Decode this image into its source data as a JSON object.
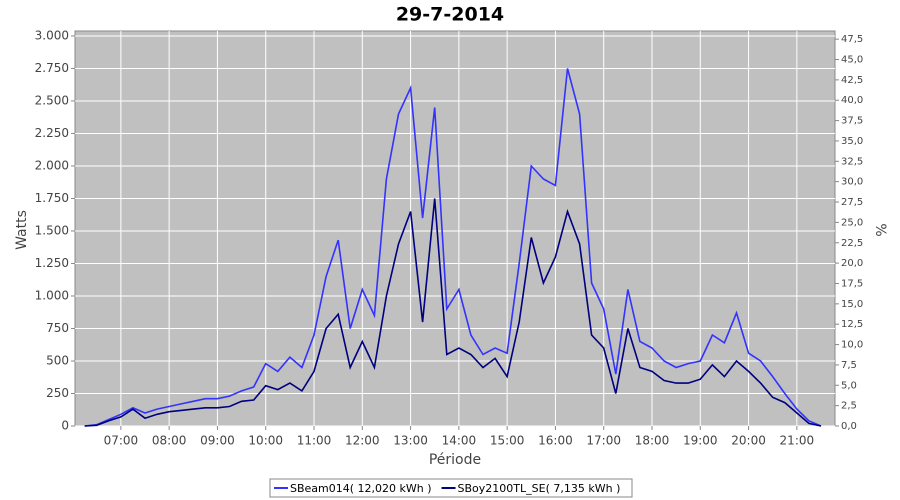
{
  "chart_data": {
    "type": "line",
    "title": "29-7-2014",
    "x_label": "Période",
    "y_label": "Watts",
    "y2_label": "%",
    "x": [
      6.25,
      6.5,
      6.75,
      7.0,
      7.25,
      7.5,
      7.75,
      8.0,
      8.25,
      8.5,
      8.75,
      9.0,
      9.25,
      9.5,
      9.75,
      10.0,
      10.25,
      10.5,
      10.75,
      11.0,
      11.25,
      11.5,
      11.75,
      12.0,
      12.25,
      12.5,
      12.75,
      13.0,
      13.25,
      13.5,
      13.75,
      14.0,
      14.25,
      14.5,
      14.75,
      15.0,
      15.25,
      15.5,
      15.75,
      16.0,
      16.25,
      16.5,
      16.75,
      17.0,
      17.25,
      17.5,
      17.75,
      18.0,
      18.25,
      18.5,
      18.75,
      19.0,
      19.25,
      19.5,
      19.75,
      20.0,
      20.25,
      20.5,
      20.75,
      21.0,
      21.25,
      21.5
    ],
    "series": [
      {
        "name": "SBeam014( 12,020 kWh )",
        "color": "#3333ff",
        "values": [
          0,
          10,
          50,
          90,
          140,
          100,
          130,
          150,
          170,
          190,
          210,
          210,
          230,
          270,
          300,
          480,
          420,
          530,
          450,
          700,
          1150,
          1430,
          750,
          1050,
          850,
          1900,
          2400,
          2600,
          1600,
          2450,
          900,
          1050,
          700,
          550,
          600,
          560,
          1250,
          2000,
          1900,
          1850,
          2750,
          2400,
          1100,
          900,
          400,
          1050,
          650,
          600,
          500,
          450,
          480,
          500,
          700,
          640,
          870,
          560,
          500,
          380,
          250,
          130,
          40,
          0
        ]
      },
      {
        "name": "SBoy2100TL_SE( 7,135 kWh )",
        "color": "#000080",
        "values": [
          0,
          5,
          40,
          70,
          130,
          60,
          90,
          110,
          120,
          130,
          140,
          140,
          150,
          190,
          200,
          310,
          280,
          330,
          270,
          420,
          750,
          860,
          450,
          650,
          450,
          1000,
          1400,
          1650,
          800,
          1750,
          550,
          600,
          550,
          450,
          520,
          380,
          800,
          1450,
          1100,
          1300,
          1650,
          1400,
          700,
          600,
          250,
          750,
          450,
          420,
          350,
          330,
          330,
          360,
          470,
          380,
          500,
          420,
          330,
          220,
          180,
          100,
          20,
          0
        ]
      }
    ],
    "xlim": [
      6.05,
      21.79
    ],
    "xticks": [
      {
        "value": 7,
        "label": "07:00"
      },
      {
        "value": 8,
        "label": "08:00"
      },
      {
        "value": 9,
        "label": "09:00"
      },
      {
        "value": 10,
        "label": "10:00"
      },
      {
        "value": 11,
        "label": "11:00"
      },
      {
        "value": 12,
        "label": "12:00"
      },
      {
        "value": 13,
        "label": "13:00"
      },
      {
        "value": 14,
        "label": "14:00"
      },
      {
        "value": 15,
        "label": "15:00"
      },
      {
        "value": 16,
        "label": "16:00"
      },
      {
        "value": 17,
        "label": "17:00"
      },
      {
        "value": 18,
        "label": "18:00"
      },
      {
        "value": 19,
        "label": "19:00"
      },
      {
        "value": 20,
        "label": "20:00"
      },
      {
        "value": 21,
        "label": "21:00"
      }
    ],
    "ylim": [
      0,
      3038
    ],
    "yticks": [
      0,
      250,
      500,
      750,
      {
        "value": 1000,
        "label": "1.000"
      },
      {
        "value": 1250,
        "label": "1.250"
      },
      {
        "value": 1500,
        "label": "1.500"
      },
      {
        "value": 1750,
        "label": "1.750"
      },
      {
        "value": 2000,
        "label": "2.000"
      },
      {
        "value": 2250,
        "label": "2.250"
      },
      {
        "value": 2500,
        "label": "2.500"
      },
      {
        "value": 2750,
        "label": "2.750"
      },
      {
        "value": 3000,
        "label": "3.000"
      }
    ],
    "y2lim": [
      0,
      48.5
    ],
    "y2ticks": [
      {
        "value": 0,
        "label": "0,0"
      },
      {
        "value": 2.5,
        "label": "2,5"
      },
      {
        "value": 5,
        "label": "5,0"
      },
      {
        "value": 7.5,
        "label": "7,5"
      },
      {
        "value": 10,
        "label": "10,0"
      },
      {
        "value": 12.5,
        "label": "12,5"
      },
      {
        "value": 15,
        "label": "15,0"
      },
      {
        "value": 17.5,
        "label": "17,5"
      },
      {
        "value": 20,
        "label": "20,0"
      },
      {
        "value": 22.5,
        "label": "22,5"
      },
      {
        "value": 25,
        "label": "25,0"
      },
      {
        "value": 27.5,
        "label": "27,5"
      },
      {
        "value": 30,
        "label": "30,0"
      },
      {
        "value": 32.5,
        "label": "32,5"
      },
      {
        "value": 35,
        "label": "35,0"
      },
      {
        "value": 37.5,
        "label": "37,5"
      },
      {
        "value": 40,
        "label": "40,0"
      },
      {
        "value": 42.5,
        "label": "42,5"
      },
      {
        "value": 45,
        "label": "45,0"
      },
      {
        "value": 47.5,
        "label": "47,5"
      }
    ],
    "grid": true
  }
}
